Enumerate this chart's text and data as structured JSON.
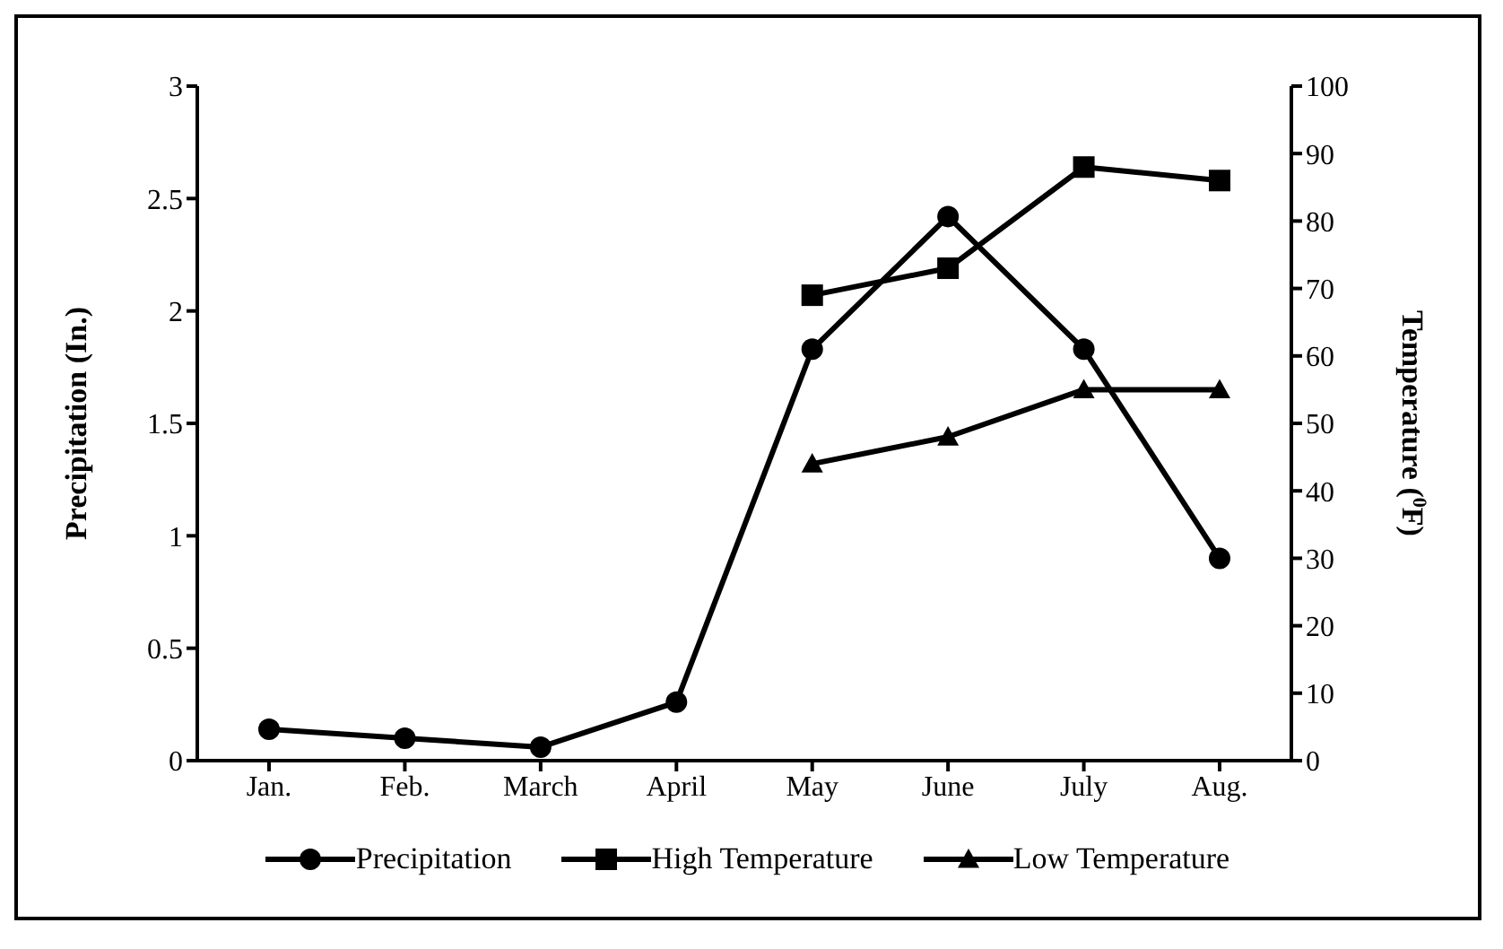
{
  "chart_data": {
    "type": "line",
    "categories": [
      "Jan.",
      "Feb.",
      "March",
      "April",
      "May",
      "June",
      "July",
      "Aug."
    ],
    "series": [
      {
        "name": "Precipitation",
        "color": "#000000",
        "marker": "circle",
        "values": [
          0.14,
          0.1,
          0.06,
          0.26,
          1.83,
          2.42,
          1.83,
          0.9
        ]
      },
      {
        "name": "High Temperature",
        "color": "#000000",
        "marker": "square",
        "axis": "y2",
        "values": [
          null,
          null,
          null,
          null,
          69,
          73,
          88,
          86
        ]
      },
      {
        "name": "Low Temperature",
        "color": "#000000",
        "marker": "triangle",
        "axis": "y2",
        "values": [
          null,
          null,
          null,
          null,
          44,
          48,
          55,
          55
        ]
      }
    ],
    "ylabel": "Precipitation (In.)",
    "y2label": "Temperature ($^{0}$F)",
    "ylim": [
      0,
      3
    ],
    "yticks": [
      0,
      0.5,
      1,
      1.5,
      2,
      2.5,
      3
    ],
    "y2lim": [
      0,
      100
    ],
    "y2ticks": [
      0,
      10,
      20,
      30,
      40,
      50,
      60,
      70,
      80,
      90,
      100
    ],
    "grid": false,
    "legend": "bottom",
    "line_style": "solid"
  }
}
